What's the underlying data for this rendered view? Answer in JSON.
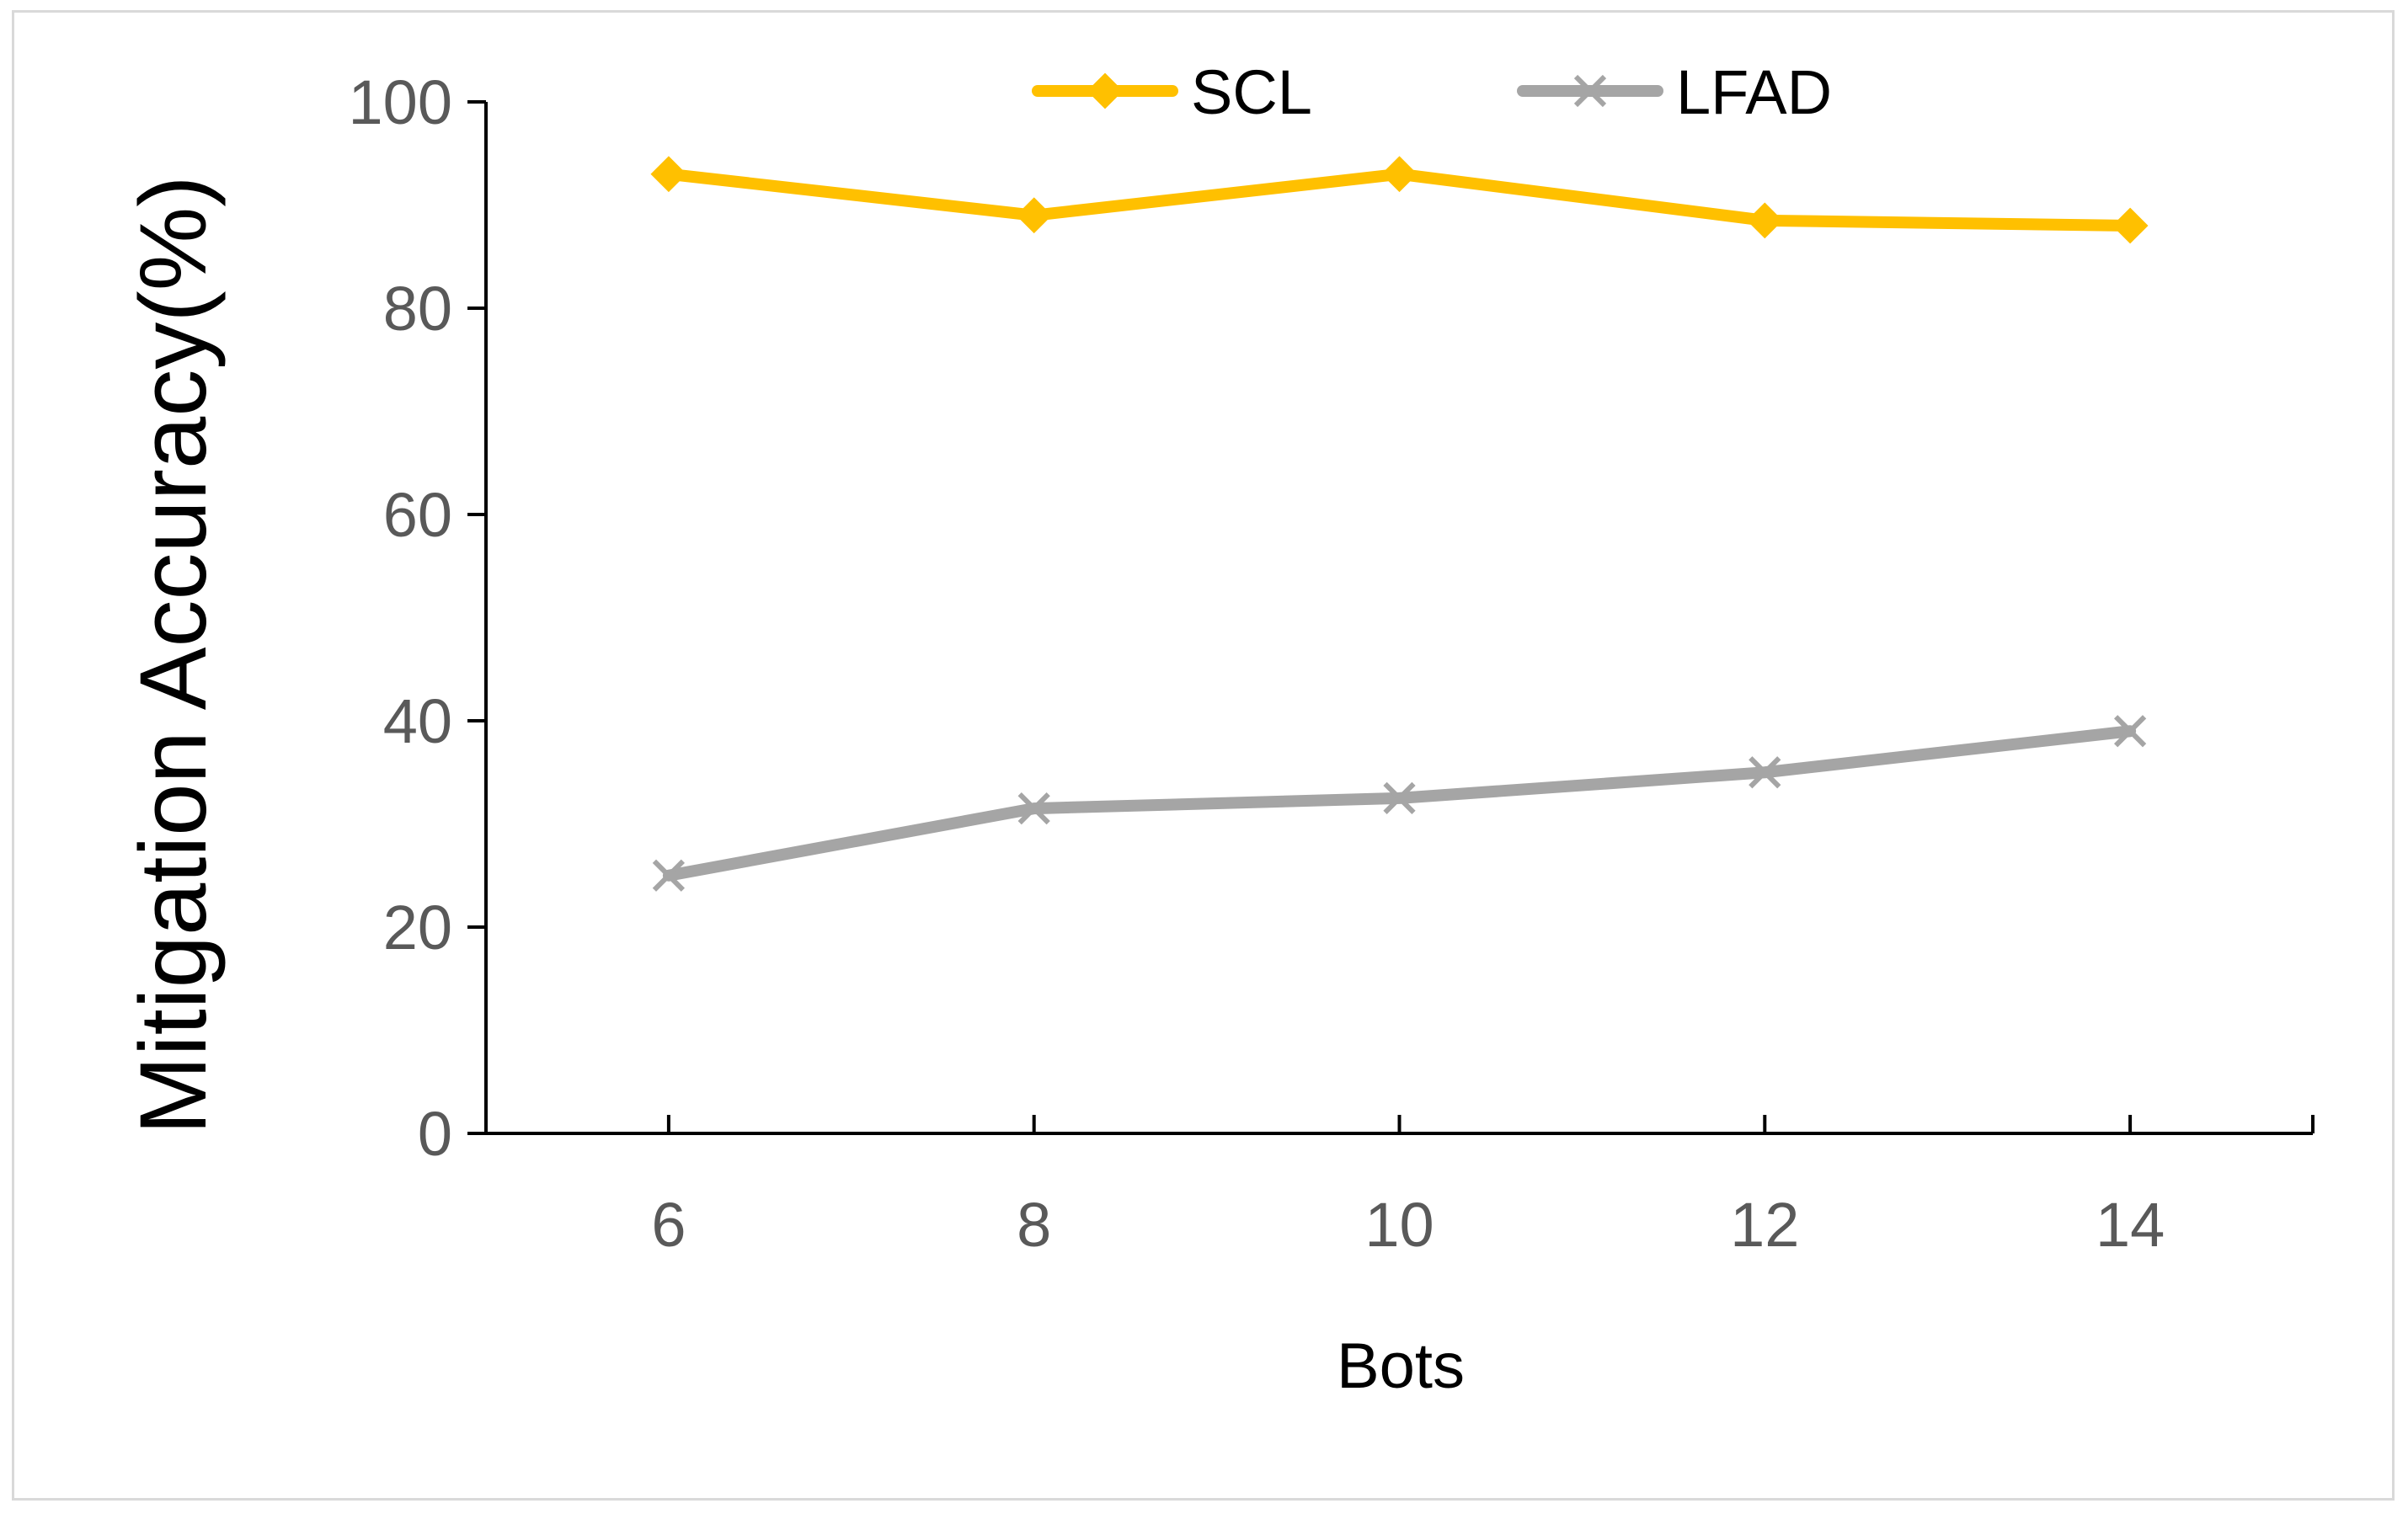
{
  "chart_data": {
    "type": "line",
    "title": "",
    "xlabel": "Bots",
    "ylabel": "Mitigation Accuracy(%)",
    "categories": [
      "6",
      "8",
      "10",
      "12",
      "14"
    ],
    "ylim": [
      0,
      100
    ],
    "yticks": [
      "0",
      "20",
      "40",
      "60",
      "80",
      "100"
    ],
    "grid": false,
    "legend_position": "top-center",
    "series": [
      {
        "name": "SCL",
        "values": [
          93,
          89,
          93,
          88.5,
          88
        ],
        "color": "#ffc000",
        "marker": "diamond"
      },
      {
        "name": "LFAD",
        "values": [
          25,
          31.5,
          32.5,
          35,
          39
        ],
        "color": "#a5a5a5",
        "marker": "x"
      }
    ]
  }
}
